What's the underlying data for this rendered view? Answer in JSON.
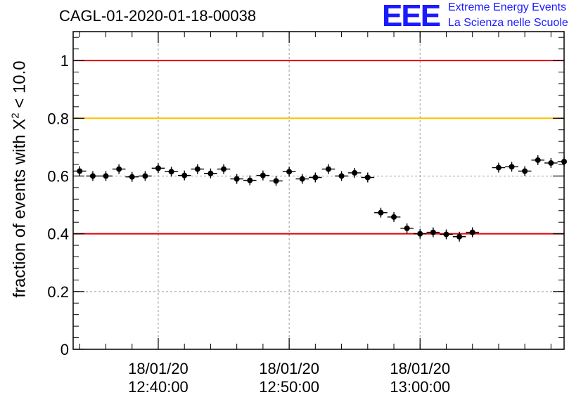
{
  "title": "CAGL-01-2020-01-18-00038",
  "logo": {
    "mark": "EEE",
    "line1": "Extreme Energy Events",
    "line2": "La Scienza nelle Scuole",
    "color": "#1a1aff"
  },
  "chart_data": {
    "type": "scatter",
    "title": "CAGL-01-2020-01-18-00038",
    "ylabel_prefix": "fraction of events with X",
    "ylabel_sup": "2",
    "ylabel_suffix": " < 10.0",
    "xlabel": "",
    "x_start": "18/01/20 12:33:30",
    "x_end": "18/01/20 13:11:00",
    "ylim": [
      0,
      1.1
    ],
    "yticks": [
      {
        "value": 0,
        "label": "0"
      },
      {
        "value": 0.2,
        "label": "0.2"
      },
      {
        "value": 0.4,
        "label": "0.4"
      },
      {
        "value": 0.6,
        "label": "0.6"
      },
      {
        "value": 0.8,
        "label": "0.8"
      },
      {
        "value": 1,
        "label": "1"
      }
    ],
    "xticks": [
      {
        "time": "18/01/20 12:40:00",
        "date": "18/01/20",
        "clock": "12:40:00"
      },
      {
        "time": "18/01/20 12:50:00",
        "date": "18/01/20",
        "clock": "12:50:00"
      },
      {
        "time": "18/01/20 13:00:00",
        "date": "18/01/20",
        "clock": "13:00:00"
      }
    ],
    "grid": true,
    "reference_lines": [
      {
        "value": 1.0,
        "color": "#e00000"
      },
      {
        "value": 0.8,
        "color": "#ffc000"
      },
      {
        "value": 0.4,
        "color": "#e00000"
      }
    ],
    "point_color": "#000000",
    "bin_width_seconds": 60,
    "points": [
      {
        "x": "18/01/20 12:34:00",
        "y": 0.617
      },
      {
        "x": "18/01/20 12:35:00",
        "y": 0.6
      },
      {
        "x": "18/01/20 12:36:00",
        "y": 0.6
      },
      {
        "x": "18/01/20 12:37:00",
        "y": 0.624
      },
      {
        "x": "18/01/20 12:38:00",
        "y": 0.597
      },
      {
        "x": "18/01/20 12:39:00",
        "y": 0.6
      },
      {
        "x": "18/01/20 12:40:00",
        "y": 0.627
      },
      {
        "x": "18/01/20 12:41:00",
        "y": 0.615
      },
      {
        "x": "18/01/20 12:42:00",
        "y": 0.602
      },
      {
        "x": "18/01/20 12:43:00",
        "y": 0.624
      },
      {
        "x": "18/01/20 12:44:00",
        "y": 0.609
      },
      {
        "x": "18/01/20 12:45:00",
        "y": 0.624
      },
      {
        "x": "18/01/20 12:46:00",
        "y": 0.59
      },
      {
        "x": "18/01/20 12:47:00",
        "y": 0.585
      },
      {
        "x": "18/01/20 12:48:00",
        "y": 0.602
      },
      {
        "x": "18/01/20 12:49:00",
        "y": 0.583
      },
      {
        "x": "18/01/20 12:50:00",
        "y": 0.615
      },
      {
        "x": "18/01/20 12:51:00",
        "y": 0.59
      },
      {
        "x": "18/01/20 12:52:00",
        "y": 0.595
      },
      {
        "x": "18/01/20 12:53:00",
        "y": 0.624
      },
      {
        "x": "18/01/20 12:54:00",
        "y": 0.6
      },
      {
        "x": "18/01/20 12:55:00",
        "y": 0.611
      },
      {
        "x": "18/01/20 12:56:00",
        "y": 0.595
      },
      {
        "x": "18/01/20 12:57:00",
        "y": 0.473
      },
      {
        "x": "18/01/20 12:58:00",
        "y": 0.458
      },
      {
        "x": "18/01/20 12:59:00",
        "y": 0.419
      },
      {
        "x": "18/01/20 13:00:00",
        "y": 0.4
      },
      {
        "x": "18/01/20 13:01:00",
        "y": 0.405
      },
      {
        "x": "18/01/20 13:02:00",
        "y": 0.398
      },
      {
        "x": "18/01/20 13:03:00",
        "y": 0.39
      },
      {
        "x": "18/01/20 13:04:00",
        "y": 0.405
      },
      {
        "x": "18/01/20 13:06:00",
        "y": 0.629
      },
      {
        "x": "18/01/20 13:07:00",
        "y": 0.632
      },
      {
        "x": "18/01/20 13:08:00",
        "y": 0.617
      },
      {
        "x": "18/01/20 13:09:00",
        "y": 0.655
      },
      {
        "x": "18/01/20 13:10:00",
        "y": 0.645
      },
      {
        "x": "18/01/20 13:11:00",
        "y": 0.65
      }
    ]
  }
}
